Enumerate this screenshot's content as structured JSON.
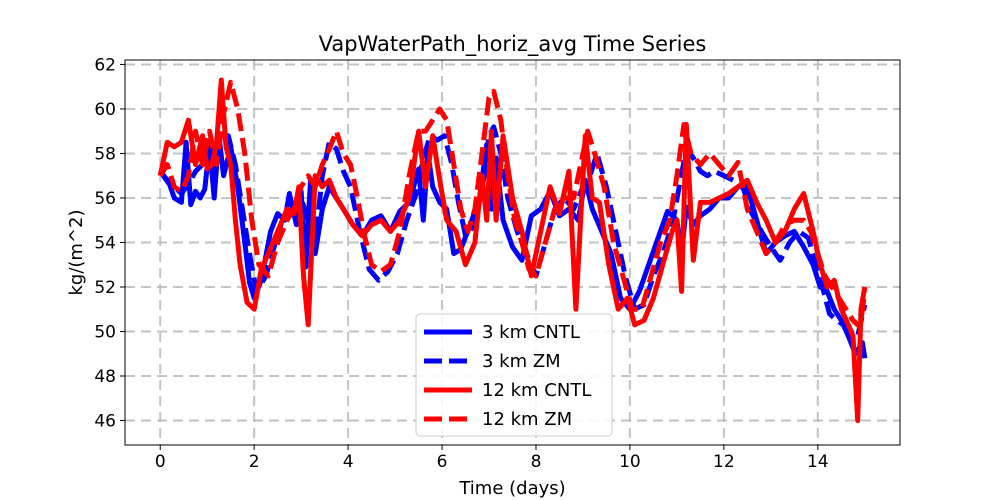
{
  "chart_data": {
    "type": "line",
    "title": "VapWaterPath_horiz_avg Time Series",
    "xlabel": "Time (days)",
    "ylabel": "kg/(m^2)",
    "xlim": [
      -0.75,
      15.75
    ],
    "ylim": [
      44.9,
      62.2
    ],
    "xticks": [
      0,
      2,
      4,
      6,
      8,
      10,
      12,
      14
    ],
    "yticks": [
      46,
      48,
      50,
      52,
      54,
      56,
      58,
      60,
      62
    ],
    "grid": true,
    "legend_position": "lower-center",
    "series": [
      {
        "name": "3 km CNTL",
        "color": "#0000ff",
        "style": "solid",
        "x": [
          0,
          0.2,
          0.3,
          0.45,
          0.55,
          0.65,
          0.75,
          0.85,
          0.95,
          1.05,
          1.15,
          1.25,
          1.35,
          1.5,
          1.65,
          1.8,
          1.9,
          2.0,
          2.15,
          2.35,
          2.5,
          2.65,
          2.75,
          2.9,
          3.0,
          3.1,
          3.2,
          3.3,
          3.45,
          3.6,
          3.75,
          3.9,
          4.1,
          4.3,
          4.5,
          4.7,
          4.9,
          5.1,
          5.3,
          5.5,
          5.6,
          5.7,
          5.8,
          5.95,
          6.1,
          6.25,
          6.4,
          6.6,
          6.8,
          6.95,
          7.05,
          7.15,
          7.3,
          7.5,
          7.7,
          7.9,
          8.1,
          8.3,
          8.5,
          8.7,
          8.9,
          9.05,
          9.2,
          9.4,
          9.6,
          9.8,
          10.0,
          10.2,
          10.4,
          10.6,
          10.8,
          11.0,
          11.1,
          11.2,
          11.35,
          11.5,
          11.7,
          11.9,
          12.1,
          12.3,
          12.5,
          12.7,
          12.9,
          13.1,
          13.3,
          13.5,
          13.7,
          13.9,
          14.05,
          14.2,
          14.35,
          14.5,
          14.65,
          14.8,
          14.95,
          15.0
        ],
        "y": [
          57.2,
          56.6,
          56.0,
          55.8,
          58.5,
          55.7,
          56.3,
          56.0,
          56.4,
          58.4,
          56.0,
          58.8,
          57.0,
          58.3,
          56.5,
          54.0,
          52.2,
          51.5,
          52.3,
          54.5,
          55.3,
          55.0,
          56.2,
          54.8,
          56.3,
          52.9,
          56.8,
          53.5,
          55.5,
          56.5,
          56.0,
          55.5,
          54.8,
          54.3,
          55.0,
          55.2,
          54.5,
          55.4,
          55.8,
          57.3,
          55.0,
          58.0,
          56.5,
          55.8,
          55.5,
          53.5,
          53.7,
          54.8,
          56.0,
          58.4,
          55.5,
          57.8,
          55.0,
          53.8,
          53.2,
          55.2,
          55.5,
          56.3,
          55.2,
          55.5,
          55.0,
          56.8,
          55.5,
          54.5,
          53.5,
          51.5,
          51.0,
          51.8,
          53.0,
          54.2,
          55.4,
          55.0,
          53.5,
          55.6,
          54.8,
          55.2,
          55.5,
          56.0,
          56.0,
          56.5,
          56.5,
          55.0,
          53.5,
          54.0,
          54.3,
          54.5,
          53.8,
          53.0,
          52.0,
          51.8,
          51.0,
          50.5,
          49.8,
          49.0,
          49.5,
          48.8
        ]
      },
      {
        "name": "3 km ZM",
        "color": "#0000ff",
        "style": "dashed",
        "x": [
          0,
          0.15,
          0.3,
          0.45,
          0.6,
          0.75,
          0.9,
          1.0,
          1.15,
          1.3,
          1.45,
          1.6,
          1.75,
          1.9,
          2.05,
          2.25,
          2.45,
          2.6,
          2.75,
          2.9,
          3.0,
          3.15,
          3.3,
          3.45,
          3.6,
          3.75,
          3.9,
          4.05,
          4.25,
          4.45,
          4.65,
          4.85,
          5.05,
          5.25,
          5.45,
          5.6,
          5.75,
          5.9,
          6.05,
          6.2,
          6.35,
          6.5,
          6.7,
          6.9,
          7.0,
          7.1,
          7.25,
          7.4,
          7.6,
          7.8,
          8.0,
          8.2,
          8.4,
          8.6,
          8.8,
          9.0,
          9.15,
          9.3,
          9.5,
          9.7,
          9.9,
          10.1,
          10.3,
          10.5,
          10.7,
          10.9,
          11.05,
          11.2,
          11.35,
          11.5,
          11.65,
          11.8,
          12.0,
          12.2,
          12.4,
          12.6,
          12.8,
          13.0,
          13.2,
          13.4,
          13.6,
          13.8,
          13.95,
          14.1,
          14.25,
          14.4,
          14.55,
          14.7,
          14.85,
          15.0
        ],
        "y": [
          57.2,
          56.8,
          56.5,
          56.2,
          56.6,
          57.2,
          57.5,
          57.8,
          58.2,
          58.5,
          58.8,
          57.5,
          55.5,
          53.5,
          51.8,
          52.5,
          54.0,
          55.0,
          55.3,
          55.5,
          56.0,
          55.0,
          54.0,
          57.0,
          58.5,
          58.2,
          57.2,
          56.5,
          54.5,
          52.8,
          52.3,
          52.7,
          53.5,
          55.0,
          56.2,
          57.8,
          58.8,
          58.6,
          58.8,
          57.6,
          55.8,
          54.3,
          54.8,
          57.0,
          58.8,
          59.2,
          58.0,
          56.0,
          54.5,
          53.5,
          52.5,
          54.0,
          55.5,
          56.0,
          55.5,
          56.5,
          57.0,
          58.0,
          56.5,
          54.5,
          52.5,
          51.0,
          51.2,
          52.5,
          53.5,
          54.8,
          56.5,
          58.2,
          57.8,
          57.2,
          57.0,
          57.2,
          57.0,
          56.8,
          56.5,
          55.3,
          54.5,
          53.8,
          53.2,
          54.0,
          54.5,
          54.2,
          53.0,
          52.0,
          50.8,
          50.5,
          50.3,
          50.0,
          49.8,
          51.2
        ]
      },
      {
        "name": "12 km CNTL",
        "color": "#ff0000",
        "style": "solid",
        "x": [
          0,
          0.15,
          0.3,
          0.45,
          0.6,
          0.75,
          0.9,
          1.0,
          1.1,
          1.2,
          1.3,
          1.4,
          1.5,
          1.6,
          1.7,
          1.85,
          2.0,
          2.15,
          2.3,
          2.5,
          2.7,
          2.85,
          2.95,
          3.05,
          3.15,
          3.3,
          3.45,
          3.6,
          3.75,
          3.9,
          4.1,
          4.3,
          4.5,
          4.7,
          4.9,
          5.1,
          5.3,
          5.5,
          5.65,
          5.8,
          5.95,
          6.1,
          6.3,
          6.5,
          6.7,
          6.85,
          6.95,
          7.05,
          7.15,
          7.3,
          7.5,
          7.7,
          7.9,
          8.1,
          8.3,
          8.5,
          8.7,
          8.85,
          8.95,
          9.05,
          9.2,
          9.35,
          9.55,
          9.75,
          9.95,
          10.1,
          10.3,
          10.5,
          10.7,
          10.9,
          11.0,
          11.1,
          11.2,
          11.35,
          11.5,
          11.7,
          11.9,
          12.1,
          12.3,
          12.5,
          12.7,
          12.9,
          13.1,
          13.3,
          13.5,
          13.7,
          13.9,
          14.05,
          14.2,
          14.35,
          14.5,
          14.65,
          14.75,
          14.85,
          14.92,
          15.0
        ],
        "y": [
          57.0,
          58.5,
          58.3,
          58.5,
          59.5,
          57.5,
          58.8,
          57.3,
          57.5,
          58.5,
          61.3,
          58.3,
          57.5,
          55.0,
          53.0,
          51.3,
          51.0,
          52.8,
          53.5,
          54.5,
          55.5,
          55.3,
          56.5,
          52.5,
          50.3,
          57.0,
          56.5,
          56.8,
          56.0,
          55.5,
          54.8,
          54.3,
          54.8,
          55.0,
          54.5,
          55.0,
          56.0,
          59.0,
          56.5,
          58.8,
          56.8,
          55.0,
          54.5,
          53.0,
          54.0,
          57.0,
          55.0,
          59.0,
          55.0,
          58.8,
          56.0,
          54.5,
          52.5,
          54.5,
          56.5,
          55.3,
          57.2,
          51.0,
          55.0,
          58.8,
          56.0,
          55.8,
          53.0,
          51.0,
          51.5,
          50.3,
          50.5,
          51.5,
          53.0,
          54.5,
          55.0,
          51.8,
          59.3,
          53.2,
          55.8,
          55.8,
          56.0,
          56.2,
          56.5,
          56.8,
          55.8,
          55.0,
          54.0,
          54.5,
          55.5,
          56.2,
          54.5,
          53.0,
          52.0,
          52.3,
          51.0,
          50.3,
          49.8,
          46.0,
          51.0,
          52.0
        ]
      },
      {
        "name": "12 km ZM",
        "color": "#ff0000",
        "style": "dashed",
        "x": [
          0,
          0.15,
          0.3,
          0.45,
          0.6,
          0.75,
          0.9,
          1.05,
          1.2,
          1.35,
          1.5,
          1.65,
          1.8,
          1.95,
          2.1,
          2.3,
          2.5,
          2.7,
          2.85,
          3.0,
          3.15,
          3.3,
          3.45,
          3.6,
          3.75,
          3.9,
          4.05,
          4.2,
          4.35,
          4.5,
          4.7,
          4.9,
          5.1,
          5.3,
          5.5,
          5.65,
          5.8,
          5.95,
          6.1,
          6.25,
          6.4,
          6.55,
          6.7,
          6.85,
          7.0,
          7.1,
          7.25,
          7.4,
          7.55,
          7.7,
          7.85,
          8.0,
          8.2,
          8.4,
          8.6,
          8.8,
          9.0,
          9.1,
          9.25,
          9.45,
          9.65,
          9.85,
          10.05,
          10.25,
          10.45,
          10.65,
          10.85,
          11.0,
          11.15,
          11.3,
          11.5,
          11.7,
          11.9,
          12.1,
          12.3,
          12.5,
          12.7,
          12.9,
          13.1,
          13.3,
          13.5,
          13.7,
          13.85,
          14.0,
          14.15,
          14.3,
          14.45,
          14.6,
          14.75,
          14.9,
          15.0
        ],
        "y": [
          57.0,
          57.5,
          56.5,
          56.3,
          57.0,
          59.0,
          57.5,
          59.0,
          57.5,
          59.8,
          61.2,
          60.0,
          58.0,
          55.0,
          53.0,
          52.5,
          54.0,
          55.0,
          55.5,
          56.5,
          57.0,
          56.5,
          57.5,
          58.2,
          59.0,
          58.0,
          57.5,
          56.0,
          54.3,
          53.0,
          52.7,
          53.0,
          54.5,
          57.0,
          59.0,
          59.0,
          59.5,
          60.0,
          59.5,
          57.5,
          55.5,
          54.5,
          55.5,
          58.0,
          60.5,
          60.8,
          59.5,
          57.0,
          55.0,
          54.0,
          52.8,
          52.5,
          54.0,
          55.5,
          56.0,
          56.0,
          58.0,
          59.0,
          58.0,
          56.5,
          54.0,
          52.5,
          51.0,
          51.0,
          52.5,
          54.0,
          55.0,
          57.0,
          59.3,
          58.0,
          57.5,
          58.0,
          57.5,
          57.0,
          57.6,
          55.5,
          54.5,
          53.5,
          54.0,
          54.8,
          55.0,
          55.0,
          54.5,
          53.5,
          52.5,
          52.0,
          51.5,
          51.0,
          50.5,
          50.2,
          51.8
        ]
      }
    ]
  }
}
